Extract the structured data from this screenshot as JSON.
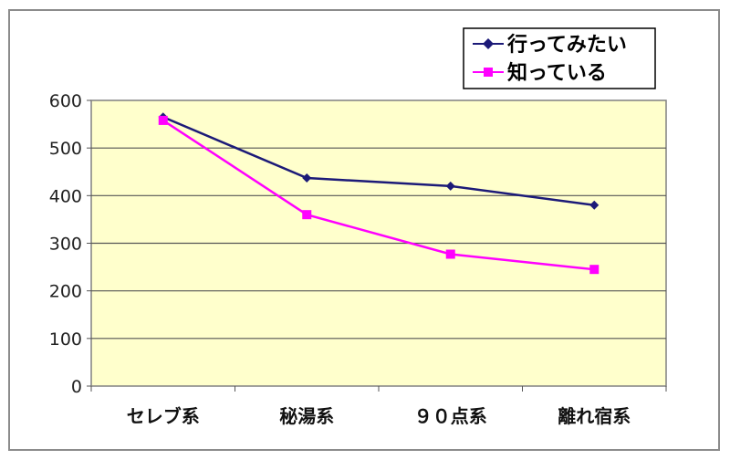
{
  "chart_data": {
    "type": "line",
    "categories": [
      "セレブ系",
      "秘湯系",
      "９０点系",
      "離れ宿系"
    ],
    "series": [
      {
        "name": "行ってみたい",
        "values": [
          565,
          437,
          420,
          380
        ],
        "color": "#1c1a78",
        "marker": "diamond"
      },
      {
        "name": "知っている",
        "values": [
          558,
          360,
          277,
          245
        ],
        "color": "#ff00ff",
        "marker": "square"
      }
    ],
    "ylim": [
      0,
      600
    ],
    "yticks": [
      0,
      100,
      200,
      300,
      400,
      500,
      600
    ],
    "grid": true,
    "legend_position": "top-right",
    "plot_background": "#ffffcc",
    "title": "",
    "xlabel": "",
    "ylabel": ""
  }
}
